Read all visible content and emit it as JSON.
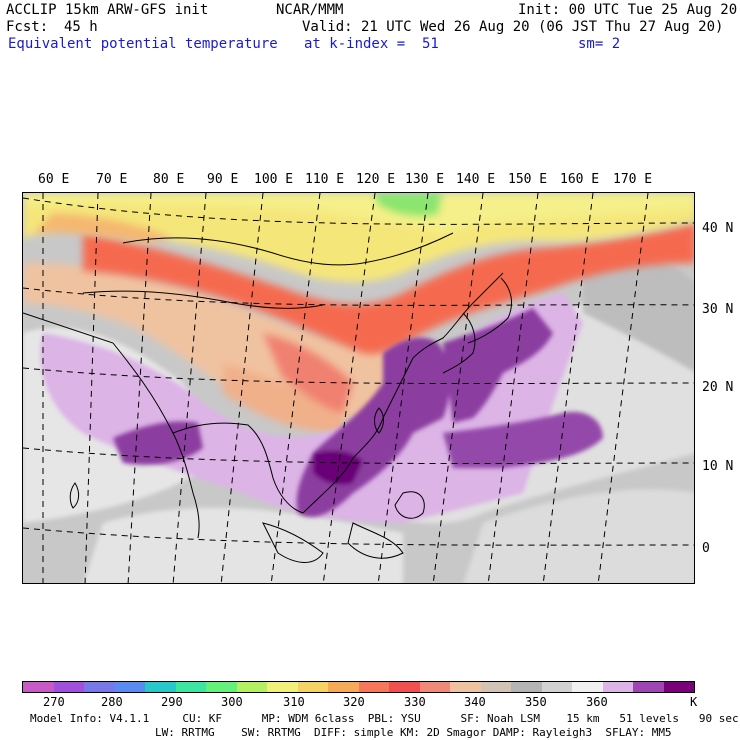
{
  "header": {
    "model_line": "ACCLIP 15km ARW-GFS init",
    "org": "NCAR/MMM",
    "init": "Init: 00 UTC Tue 25 Aug 20",
    "fcst_label": "Fcst:",
    "fcst_value": "45 h",
    "valid": "Valid: 21 UTC Wed 26 Aug 20 (06 JST Thu 27 Aug 20)",
    "field": "Equivalent potential temperature",
    "level": "at k-index =  51",
    "smoothing": "sm= 2"
  },
  "map": {
    "longitude_labels": [
      "60 E",
      "70 E",
      "80 E",
      "90 E",
      "100 E",
      "110 E",
      "120 E",
      "130 E",
      "140 E",
      "150 E",
      "160 E",
      "170 E"
    ],
    "latitude_labels": [
      "40 N",
      "30 N",
      "20 N",
      "10 N",
      "0"
    ]
  },
  "colorbar": {
    "colors": [
      "#c85ac8",
      "#a050dc",
      "#7878e6",
      "#5a8cf0",
      "#28c8c8",
      "#3ce6a0",
      "#64f07a",
      "#b4f064",
      "#f0f07a",
      "#f5d264",
      "#f5aa5a",
      "#f5785a",
      "#f05050",
      "#f08a78",
      "#f0c3a0",
      "#d2c3b4",
      "#b4b4b4",
      "#d2d2d2",
      "#f0f0f0",
      "#dcb4e6",
      "#a046b4",
      "#780078"
    ],
    "labels": [
      "270",
      "280",
      "290",
      "300",
      "310",
      "320",
      "330",
      "340",
      "350",
      "360",
      "K"
    ]
  },
  "footer": {
    "line1": "Model Info: V4.1.1     CU: KF      MP: WDM 6class  PBL: YSU      SF: Noah LSM    15 km   51 levels   90 sec",
    "line2": "LW: RRTMG    SW: RRTMG  DIFF: simple KM: 2D Smagor DAMP: Rayleigh3  SFLAY: MM5"
  }
}
